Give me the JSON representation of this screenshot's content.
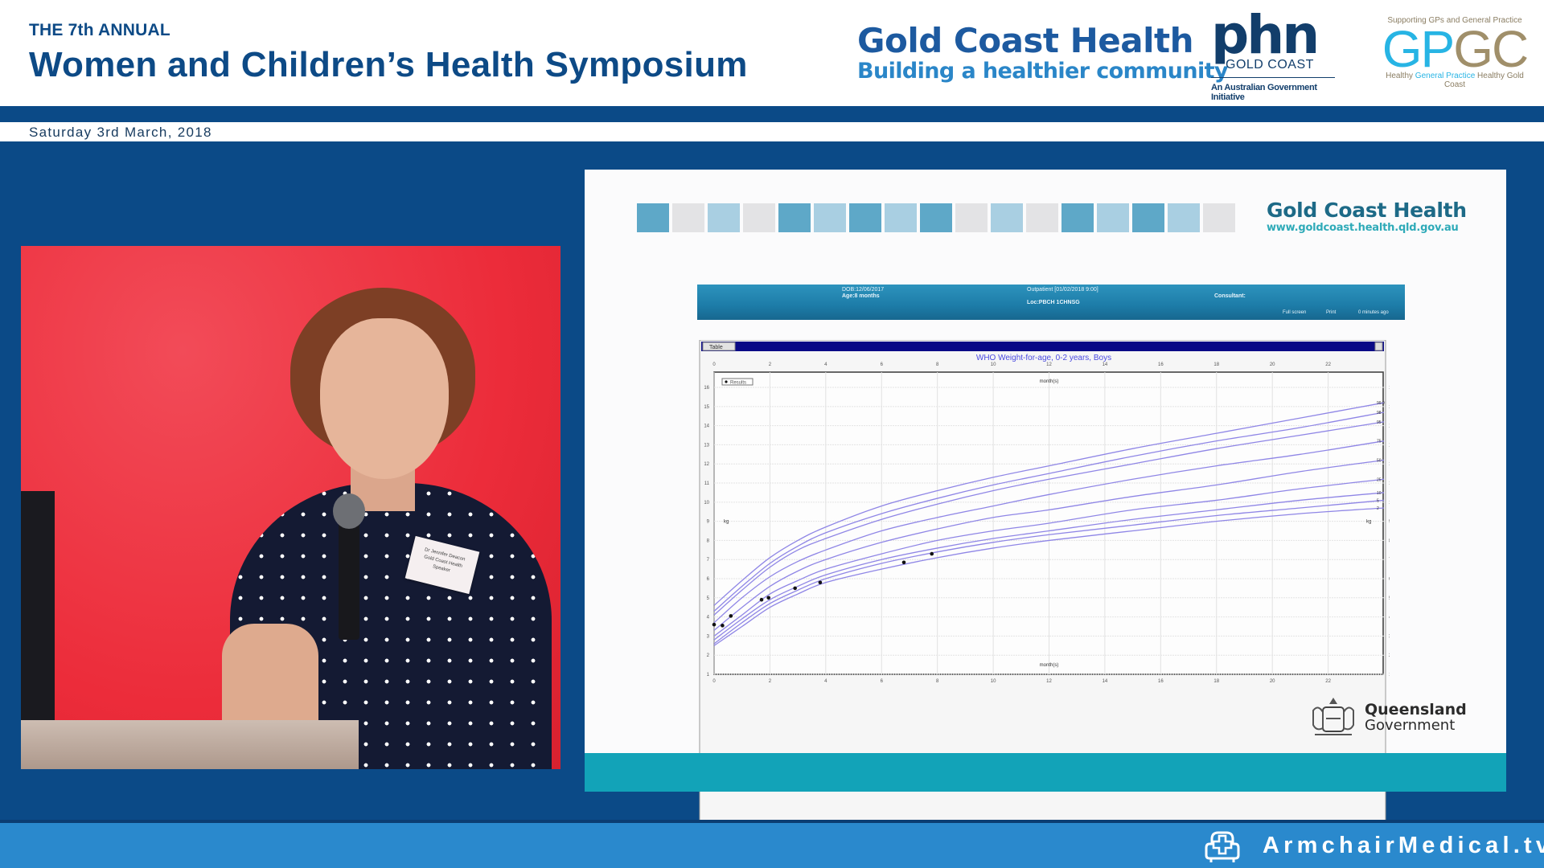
{
  "header": {
    "pre_title": "THE 7th ANNUAL",
    "title": "Women and Children’s Health Symposium",
    "date": "Saturday 3rd March, 2018"
  },
  "logos": {
    "gold_coast_health": {
      "name": "Gold Coast Health",
      "tagline": "Building a healthier community"
    },
    "phn": {
      "mark": "phn",
      "region": "GOLD COAST",
      "note": "An Australian Government Initiative"
    },
    "gpgc": {
      "supporting": "Supporting GPs and General Practice",
      "gp": "GP",
      "gc": "GC",
      "tag_pre": "Healthy ",
      "tag_hl": "General Practice",
      "tag_post": " Healthy Gold Coast"
    }
  },
  "colors": {
    "brand_navy": "#0b4a87",
    "brand_light_blue": "#2a89cd",
    "slide_teal": "#12a3b8",
    "curve_color": "#8f86e6",
    "chart_header": "#0a0a86"
  },
  "video": {
    "badge_lines": [
      "Dr Jennifer Deacon",
      "Gold Coast Health",
      "Speaker"
    ]
  },
  "slide": {
    "logo_name": "Gold Coast Health",
    "logo_url": "www.goldcoast.health.qld.gov.au",
    "squares": [
      "#5ea8c8",
      "#e3e3e5",
      "#a9cfe2",
      "#e3e3e5",
      "#5ea8c8",
      "#a9cfe2",
      "#5ea8c8",
      "#a9cfe2",
      "#5ea8c8",
      "#e3e3e5",
      "#a9cfe2",
      "#e3e3e5",
      "#5ea8c8",
      "#a9cfe2",
      "#5ea8c8",
      "#a9cfe2",
      "#e3e3e5"
    ],
    "patient_bar": {
      "dob": "DOB:12/06/2017",
      "age": "Age:8 months",
      "encounter": "Outpatient [01/02/2018 9:00]",
      "loc": "Loc:PBCH 1CHNSG",
      "consultant": "Consultant:",
      "full_screen": "Full screen",
      "print": "Print",
      "refreshed": "0 minutes ago"
    },
    "chart_tab": "Table",
    "chart_title": "WHO Weight-for-age, 0-2 years, Boys",
    "legend_label": "Results",
    "x_unit": "month(s)",
    "y_unit": "kg",
    "qld_line1": "Queensland",
    "qld_line2": "Government"
  },
  "footer": {
    "brand": "ArmchairMedical.tv"
  },
  "chart_data": {
    "type": "line",
    "title": "WHO Weight-for-age, 0-2 years, Boys",
    "xlabel": "month(s)",
    "ylabel": "kg",
    "xlim": [
      0,
      24
    ],
    "ylim": [
      1,
      16
    ],
    "x_ticks": [
      0,
      2,
      4,
      6,
      8,
      10,
      12,
      14,
      16,
      18,
      20,
      22
    ],
    "y_ticks": [
      1,
      2,
      3,
      4,
      5,
      6,
      7,
      8,
      9,
      10,
      11,
      12,
      13,
      14,
      15,
      16
    ],
    "grid": true,
    "legend": [
      "Results"
    ],
    "legend_position": "top-left",
    "x": [
      0,
      1,
      2,
      3,
      4,
      6,
      8,
      10,
      12,
      15,
      18,
      21,
      24
    ],
    "series": [
      {
        "name": "99.9th",
        "values": [
          4.6,
          5.9,
          7.1,
          8.0,
          8.7,
          9.8,
          10.6,
          11.3,
          11.9,
          12.8,
          13.6,
          14.4,
          15.2
        ]
      },
      {
        "name": "98th",
        "values": [
          4.3,
          5.6,
          6.8,
          7.7,
          8.4,
          9.4,
          10.2,
          10.9,
          11.5,
          12.4,
          13.2,
          13.9,
          14.7
        ]
      },
      {
        "name": "95th",
        "values": [
          4.1,
          5.4,
          6.6,
          7.5,
          8.1,
          9.1,
          9.9,
          10.6,
          11.2,
          12.0,
          12.8,
          13.5,
          14.2
        ]
      },
      {
        "name": "75th",
        "values": [
          3.7,
          5.0,
          6.1,
          6.9,
          7.5,
          8.5,
          9.2,
          9.8,
          10.4,
          11.2,
          11.9,
          12.5,
          13.2
        ]
      },
      {
        "name": "50th",
        "values": [
          3.3,
          4.5,
          5.6,
          6.4,
          7.0,
          7.9,
          8.6,
          9.2,
          9.6,
          10.3,
          10.9,
          11.6,
          12.2
        ]
      },
      {
        "name": "25th",
        "values": [
          3.0,
          4.1,
          5.2,
          5.9,
          6.5,
          7.3,
          8.0,
          8.5,
          8.9,
          9.6,
          10.1,
          10.7,
          11.2
        ]
      },
      {
        "name": "10th",
        "values": [
          2.8,
          3.9,
          4.9,
          5.6,
          6.2,
          7.0,
          7.6,
          8.1,
          8.5,
          9.1,
          9.6,
          10.1,
          10.5
        ]
      },
      {
        "name": "5th",
        "values": [
          2.6,
          3.7,
          4.7,
          5.4,
          6.0,
          6.8,
          7.4,
          7.9,
          8.3,
          8.8,
          9.3,
          9.7,
          10.1
        ]
      },
      {
        "name": "2nd",
        "values": [
          2.5,
          3.5,
          4.5,
          5.2,
          5.8,
          6.5,
          7.1,
          7.6,
          8.0,
          8.5,
          9.0,
          9.4,
          9.7
        ]
      }
    ],
    "percentile_labels": [
      "99.9",
      "98",
      "95",
      "75",
      "50",
      "25",
      "10",
      "5",
      "2"
    ],
    "results": {
      "name": "Results",
      "points": [
        [
          0,
          3.6
        ],
        [
          0.3,
          3.55
        ],
        [
          0.6,
          4.05
        ],
        [
          1.7,
          4.9
        ],
        [
          1.95,
          5.0
        ],
        [
          2.9,
          5.5
        ],
        [
          3.8,
          5.8
        ],
        [
          6.8,
          6.85
        ],
        [
          7.8,
          7.3
        ]
      ]
    }
  }
}
